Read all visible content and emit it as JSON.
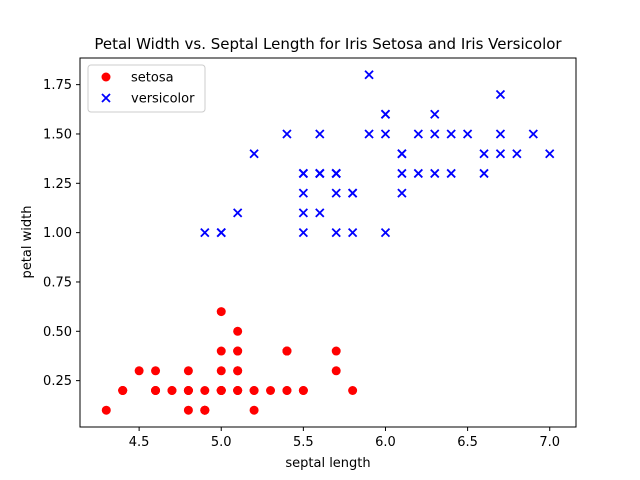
{
  "chart_data": {
    "type": "scatter",
    "title": "Petal Width vs. Septal Length for Iris Setosa and Iris Versicolor",
    "xlabel": "septal length",
    "ylabel": "petal width",
    "xlim": [
      4.14,
      7.16
    ],
    "ylim": [
      0.015,
      1.885
    ],
    "xticks": [
      "4.5",
      "5.0",
      "5.5",
      "6.0",
      "6.5",
      "7.0"
    ],
    "yticks": [
      "0.25",
      "0.50",
      "0.75",
      "1.00",
      "1.25",
      "1.50",
      "1.75"
    ],
    "grid": false,
    "legend_position": "upper-left",
    "series": [
      {
        "name": "setosa",
        "marker": "circle",
        "color": "#ff0000",
        "points": [
          [
            5.1,
            0.2
          ],
          [
            4.9,
            0.2
          ],
          [
            4.7,
            0.2
          ],
          [
            4.6,
            0.2
          ],
          [
            5.0,
            0.2
          ],
          [
            5.4,
            0.4
          ],
          [
            4.6,
            0.3
          ],
          [
            5.0,
            0.2
          ],
          [
            4.4,
            0.2
          ],
          [
            4.9,
            0.1
          ],
          [
            5.4,
            0.2
          ],
          [
            4.8,
            0.2
          ],
          [
            4.8,
            0.1
          ],
          [
            4.3,
            0.1
          ],
          [
            5.8,
            0.2
          ],
          [
            5.7,
            0.4
          ],
          [
            5.4,
            0.4
          ],
          [
            5.1,
            0.3
          ],
          [
            5.7,
            0.3
          ],
          [
            5.1,
            0.3
          ],
          [
            5.4,
            0.2
          ],
          [
            5.1,
            0.4
          ],
          [
            4.6,
            0.2
          ],
          [
            5.1,
            0.5
          ],
          [
            4.8,
            0.2
          ],
          [
            5.0,
            0.2
          ],
          [
            5.0,
            0.4
          ],
          [
            5.2,
            0.2
          ],
          [
            5.2,
            0.2
          ],
          [
            4.7,
            0.2
          ],
          [
            4.8,
            0.2
          ],
          [
            5.4,
            0.4
          ],
          [
            5.2,
            0.1
          ],
          [
            5.5,
            0.2
          ],
          [
            4.9,
            0.1
          ],
          [
            5.0,
            0.2
          ],
          [
            5.5,
            0.2
          ],
          [
            4.9,
            0.1
          ],
          [
            4.4,
            0.2
          ],
          [
            5.1,
            0.2
          ],
          [
            5.0,
            0.3
          ],
          [
            4.5,
            0.3
          ],
          [
            4.4,
            0.2
          ],
          [
            5.0,
            0.6
          ],
          [
            5.1,
            0.4
          ],
          [
            4.8,
            0.3
          ],
          [
            5.1,
            0.2
          ],
          [
            4.6,
            0.2
          ],
          [
            5.3,
            0.2
          ],
          [
            5.0,
            0.2
          ]
        ]
      },
      {
        "name": "versicolor",
        "marker": "x",
        "color": "#0000ff",
        "points": [
          [
            7.0,
            1.4
          ],
          [
            6.4,
            1.5
          ],
          [
            6.9,
            1.5
          ],
          [
            5.5,
            1.3
          ],
          [
            6.5,
            1.5
          ],
          [
            5.7,
            1.3
          ],
          [
            6.3,
            1.6
          ],
          [
            4.9,
            1.0
          ],
          [
            6.6,
            1.3
          ],
          [
            5.2,
            1.4
          ],
          [
            5.0,
            1.0
          ],
          [
            5.9,
            1.5
          ],
          [
            6.0,
            1.0
          ],
          [
            6.1,
            1.4
          ],
          [
            5.6,
            1.3
          ],
          [
            6.7,
            1.4
          ],
          [
            5.6,
            1.5
          ],
          [
            5.8,
            1.0
          ],
          [
            6.2,
            1.5
          ],
          [
            5.6,
            1.1
          ],
          [
            5.9,
            1.8
          ],
          [
            6.1,
            1.3
          ],
          [
            6.3,
            1.5
          ],
          [
            6.1,
            1.2
          ],
          [
            6.4,
            1.3
          ],
          [
            6.6,
            1.4
          ],
          [
            6.8,
            1.4
          ],
          [
            6.7,
            1.7
          ],
          [
            6.0,
            1.5
          ],
          [
            5.7,
            1.0
          ],
          [
            5.5,
            1.1
          ],
          [
            5.5,
            1.0
          ],
          [
            5.8,
            1.2
          ],
          [
            6.0,
            1.6
          ],
          [
            5.4,
            1.5
          ],
          [
            6.0,
            1.6
          ],
          [
            6.7,
            1.5
          ],
          [
            6.3,
            1.3
          ],
          [
            5.6,
            1.3
          ],
          [
            5.5,
            1.3
          ],
          [
            5.5,
            1.2
          ],
          [
            6.1,
            1.4
          ],
          [
            5.8,
            1.2
          ],
          [
            5.0,
            1.0
          ],
          [
            5.6,
            1.3
          ],
          [
            5.7,
            1.2
          ],
          [
            5.7,
            1.3
          ],
          [
            6.2,
            1.3
          ],
          [
            5.1,
            1.1
          ],
          [
            5.7,
            1.3
          ]
        ]
      }
    ]
  }
}
